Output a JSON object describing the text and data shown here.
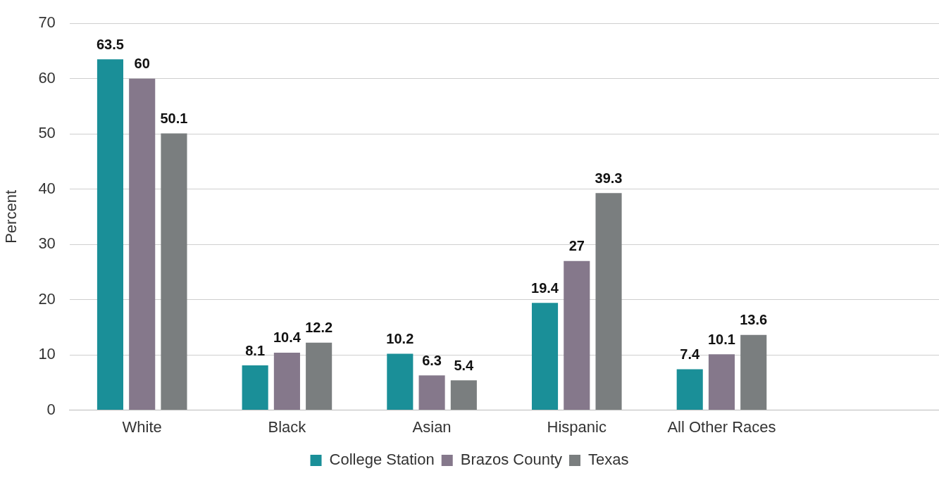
{
  "chart_data": {
    "type": "bar",
    "ylabel": "Percent",
    "categories": [
      "White",
      "Black",
      "Asian",
      "Hispanic",
      "All Other Races",
      null
    ],
    "series": [
      {
        "name": "College Station",
        "color": "#1a8f98",
        "values": [
          63.5,
          8.1,
          10.2,
          19.4,
          7.4,
          null
        ]
      },
      {
        "name": "Brazos County",
        "color": "#85788b",
        "values": [
          60,
          10.4,
          6.3,
          27,
          10.1,
          null
        ]
      },
      {
        "name": "Texas",
        "color": "#7a7e7f",
        "values": [
          50.1,
          12.2,
          5.4,
          39.3,
          13.6,
          null
        ]
      }
    ],
    "ylim": [
      0,
      70
    ],
    "yticks": [
      0,
      10,
      20,
      30,
      40,
      50,
      60,
      70
    ],
    "grid": "y",
    "legend": "bottom",
    "data_labels": true
  }
}
